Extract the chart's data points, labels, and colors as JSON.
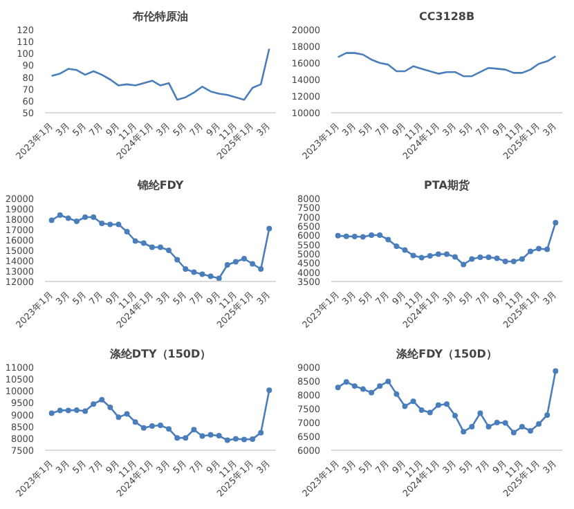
{
  "chart_data": [
    {
      "type": "line",
      "title": "布伦特原油",
      "color": "#4a7ebb",
      "categories": [
        "2023年1月",
        null,
        "3月",
        null,
        "5月",
        null,
        "7月",
        null,
        "9月",
        null,
        "11月",
        null,
        "2024年1月",
        null,
        "3月",
        null,
        "5月",
        null,
        "7月",
        null,
        "9月",
        null,
        "11月",
        null,
        "2025年1月",
        null,
        "3月"
      ],
      "values": [
        81,
        83,
        87,
        86,
        82,
        85,
        82,
        78,
        73,
        74,
        73,
        75,
        77,
        73,
        75,
        61,
        63,
        67,
        72,
        68,
        66,
        65,
        63,
        61,
        71,
        74,
        104
      ],
      "ylim": [
        50,
        120
      ],
      "yticks": [
        50,
        60,
        70,
        80,
        90,
        100,
        110,
        120
      ]
    },
    {
      "type": "line",
      "title": "CC3128B",
      "color": "#4a7ebb",
      "categories": [
        "2023年1月",
        null,
        "3月",
        null,
        "5月",
        null,
        "7月",
        null,
        "9月",
        null,
        "11月",
        null,
        "2024年1月",
        null,
        "3月",
        null,
        "5月",
        null,
        "7月",
        null,
        "9月",
        null,
        "11月",
        null,
        "2025年1月",
        null,
        "3月"
      ],
      "values": [
        16700,
        17200,
        17200,
        17000,
        16400,
        16000,
        15800,
        15000,
        15000,
        15600,
        15300,
        15000,
        14700,
        14900,
        14900,
        14400,
        14400,
        14900,
        15400,
        15300,
        15200,
        14800,
        14800,
        15200,
        15900,
        16200,
        16800
      ],
      "ylim": [
        10000,
        20000
      ],
      "yticks": [
        10000,
        12000,
        14000,
        16000,
        18000,
        20000
      ]
    },
    {
      "type": "line",
      "title": "锦纶FDY",
      "color": "#4a7ebb",
      "marker": "circle",
      "categories": [
        "2023年1月",
        null,
        "3月",
        null,
        "5月",
        null,
        "7月",
        null,
        "9月",
        null,
        "11月",
        null,
        "2024年1月",
        null,
        "3月",
        null,
        "5月",
        null,
        "7月",
        null,
        "9月",
        null,
        "11月",
        null,
        "2025年1月",
        null,
        "3月"
      ],
      "values": [
        17900,
        18400,
        18100,
        17800,
        18200,
        18200,
        17600,
        17500,
        17500,
        16800,
        15900,
        15700,
        15300,
        15300,
        15000,
        14100,
        13200,
        12900,
        12700,
        12500,
        12300,
        13600,
        13900,
        14200,
        13700,
        13200,
        17100
      ],
      "ylim": [
        12000,
        20000
      ],
      "yticks": [
        12000,
        13000,
        14000,
        15000,
        16000,
        17000,
        18000,
        19000,
        20000
      ]
    },
    {
      "type": "line",
      "title": "PTA期货",
      "color": "#4a7ebb",
      "marker": "circle",
      "categories": [
        "2023年1月",
        null,
        "3月",
        null,
        "5月",
        null,
        "7月",
        null,
        "9月",
        null,
        "11月",
        null,
        "2024年1月",
        null,
        "3月",
        null,
        "5月",
        null,
        "7月",
        null,
        "9月",
        null,
        "11月",
        null,
        "2025年1月",
        null,
        "3月"
      ],
      "values": [
        5980,
        5950,
        5940,
        5920,
        6010,
        6010,
        5770,
        5410,
        5210,
        4910,
        4790,
        4890,
        4980,
        4980,
        4830,
        4420,
        4720,
        4810,
        4810,
        4760,
        4590,
        4590,
        4720,
        5130,
        5280,
        5240,
        6690
      ],
      "ylim": [
        3500,
        8000
      ],
      "yticks": [
        3500,
        4000,
        4500,
        5000,
        5500,
        6000,
        6500,
        7000,
        7500,
        8000
      ]
    },
    {
      "type": "line",
      "title": "涤纶DTY（150D）",
      "color": "#4a7ebb",
      "marker": "circle",
      "categories": [
        "2023年1月",
        null,
        "3月",
        null,
        "5月",
        null,
        "7月",
        null,
        "9月",
        null,
        "11月",
        null,
        "2024年1月",
        null,
        "3月",
        null,
        "5月",
        null,
        "7月",
        null,
        "9月",
        null,
        "11月",
        null,
        "2025年1月",
        null,
        "3月"
      ],
      "values": [
        9060,
        9180,
        9180,
        9190,
        9150,
        9450,
        9630,
        9310,
        8890,
        9030,
        8690,
        8440,
        8520,
        8550,
        8400,
        8020,
        8020,
        8370,
        8100,
        8150,
        8110,
        7920,
        7980,
        7950,
        7970,
        8240,
        10030
      ],
      "ylim": [
        7500,
        11000
      ],
      "yticks": [
        7500,
        8000,
        8500,
        9000,
        9500,
        10000,
        10500,
        11000
      ]
    },
    {
      "type": "line",
      "title": "涤纶FDY（150D）",
      "color": "#4a7ebb",
      "marker": "circle",
      "categories": [
        "2023年1月",
        null,
        "3月",
        null,
        "5月",
        null,
        "7月",
        null,
        "9月",
        null,
        "11月",
        null,
        "2024年1月",
        null,
        "3月",
        null,
        "5月",
        null,
        "7月",
        null,
        "9月",
        null,
        "11月",
        null,
        "2025年1月",
        null,
        "3月"
      ],
      "values": [
        8270,
        8470,
        8320,
        8210,
        8080,
        8320,
        8490,
        8030,
        7590,
        7770,
        7450,
        7360,
        7630,
        7670,
        7250,
        6670,
        6850,
        7340,
        6850,
        7000,
        6990,
        6640,
        6850,
        6700,
        6950,
        7270,
        8860
      ],
      "ylim": [
        6000,
        9000
      ],
      "yticks": [
        6000,
        6500,
        7000,
        7500,
        8000,
        8500,
        9000
      ]
    }
  ]
}
